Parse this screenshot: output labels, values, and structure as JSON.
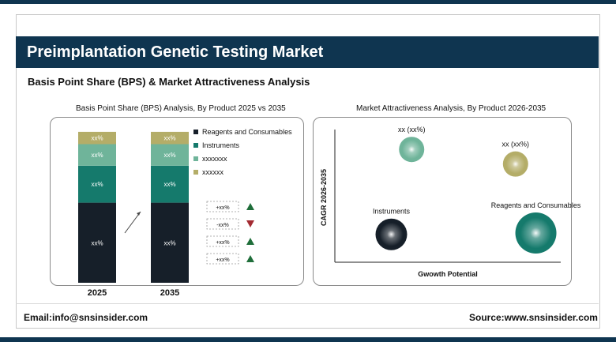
{
  "header": {
    "title": "Preimplantation Genetic Testing Market",
    "subtitle": "Basis Point Share (BPS) & Market Attractiveness Analysis"
  },
  "footer": {
    "email": "Email:info@snsinsider.com",
    "source": "Source:www.snsinsider.com"
  },
  "colors": {
    "navy": "#0f3550",
    "reagents": "#161f29",
    "instruments": "#157a6c",
    "seg3": "#6fb49a",
    "seg4": "#b4ad68"
  },
  "chart_data": [
    {
      "type": "bar",
      "stacked": true,
      "title": "Basis Point Share (BPS) Analysis, By Product 2025 vs 2035",
      "categories": [
        "2025",
        "2035"
      ],
      "series": [
        {
          "name": "Reagents and Consumables",
          "values": [
            52,
            52
          ],
          "labels": [
            "xx%",
            "xx%"
          ],
          "color": "#161f29"
        },
        {
          "name": "Instruments",
          "values": [
            24,
            24
          ],
          "labels": [
            "xx%",
            "xx%"
          ],
          "color": "#157a6c"
        },
        {
          "name": "xxxxxxx",
          "values": [
            14,
            14
          ],
          "labels": [
            "xx%",
            "xx%"
          ],
          "color": "#6fb49a"
        },
        {
          "name": "xxxxxx",
          "values": [
            8,
            8
          ],
          "labels": [
            "xx%",
            "xx%"
          ],
          "color": "#b4ad68"
        }
      ],
      "ylim": [
        0,
        100
      ],
      "legend": "right",
      "changes": [
        {
          "label": "+xx%",
          "direction": "up"
        },
        {
          "label": "-xx%",
          "direction": "down"
        },
        {
          "label": "+xx%",
          "direction": "up"
        },
        {
          "label": "+xx%",
          "direction": "up"
        }
      ]
    },
    {
      "type": "scatter",
      "title": "Market Attractiveness Analysis, By Product 2026-2035",
      "xlabel": "Gwowth Potential",
      "ylabel": "CAGR 2026-2035",
      "xlim": [
        0,
        100
      ],
      "ylim": [
        0,
        100
      ],
      "points": [
        {
          "label": "xx (xx%)",
          "x": 34,
          "y": 85,
          "size": 16,
          "color": "#6fb49a"
        },
        {
          "label": "xx (xx%)",
          "x": 80,
          "y": 74,
          "size": 16,
          "color": "#b4ad68"
        },
        {
          "label": "Instruments",
          "x": 25,
          "y": 21,
          "size": 20,
          "color": "#161f29"
        },
        {
          "label": "Reagents and Consumables",
          "x": 89,
          "y": 22,
          "size": 26,
          "color": "#157a6c"
        }
      ]
    }
  ]
}
